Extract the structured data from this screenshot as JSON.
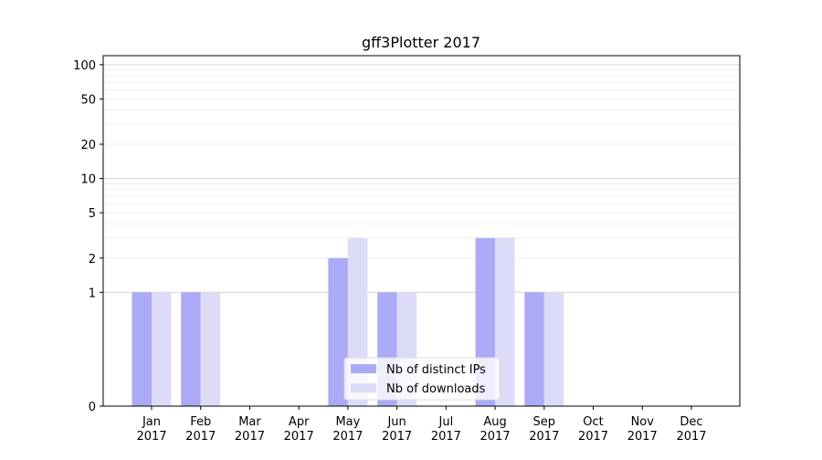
{
  "chart_data": {
    "type": "bar",
    "title": "gff3Plotter 2017",
    "xlabel": "",
    "ylabel": "",
    "yscale": "symlog",
    "ylim": [
      0,
      120
    ],
    "yticks": [
      0,
      1,
      2,
      5,
      10,
      20,
      50,
      100
    ],
    "grid": true,
    "legend_position": "bottom-center",
    "categories": [
      [
        "Jan",
        "2017"
      ],
      [
        "Feb",
        "2017"
      ],
      [
        "Mar",
        "2017"
      ],
      [
        "Apr",
        "2017"
      ],
      [
        "May",
        "2017"
      ],
      [
        "Jun",
        "2017"
      ],
      [
        "Jul",
        "2017"
      ],
      [
        "Aug",
        "2017"
      ],
      [
        "Sep",
        "2017"
      ],
      [
        "Oct",
        "2017"
      ],
      [
        "Nov",
        "2017"
      ],
      [
        "Dec",
        "2017"
      ]
    ],
    "series": [
      {
        "name": "Nb of distinct IPs",
        "color": "#aaaaf7",
        "values": [
          1,
          1,
          0,
          0,
          2,
          1,
          0,
          3,
          1,
          0,
          0,
          0
        ]
      },
      {
        "name": "Nb of downloads",
        "color": "#dcdcf9",
        "values": [
          1,
          1,
          0,
          0,
          3,
          1,
          0,
          3,
          1,
          0,
          0,
          0
        ]
      }
    ]
  }
}
